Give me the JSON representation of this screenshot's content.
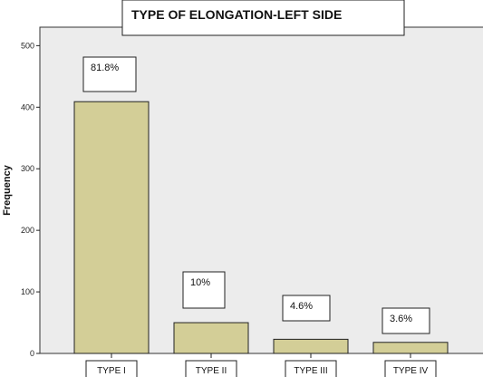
{
  "chart_data": {
    "type": "bar",
    "title": "TYPE OF ELONGATION-LEFT SIDE",
    "ylabel": "Frequency",
    "xlabel": "",
    "categories": [
      "TYPE I",
      "TYPE II",
      "TYPE III",
      "TYPE IV"
    ],
    "values": [
      409,
      50,
      23,
      18
    ],
    "annotations": [
      "81.8%",
      "10%",
      "4.6%",
      "3.6%"
    ],
    "ylim": [
      0,
      530
    ],
    "yticks": [
      0,
      100,
      200,
      300,
      400,
      500
    ],
    "colors": {
      "bar": "#d3ce97",
      "plot_background": "#ececec"
    },
    "grid": false,
    "legend": "none"
  }
}
